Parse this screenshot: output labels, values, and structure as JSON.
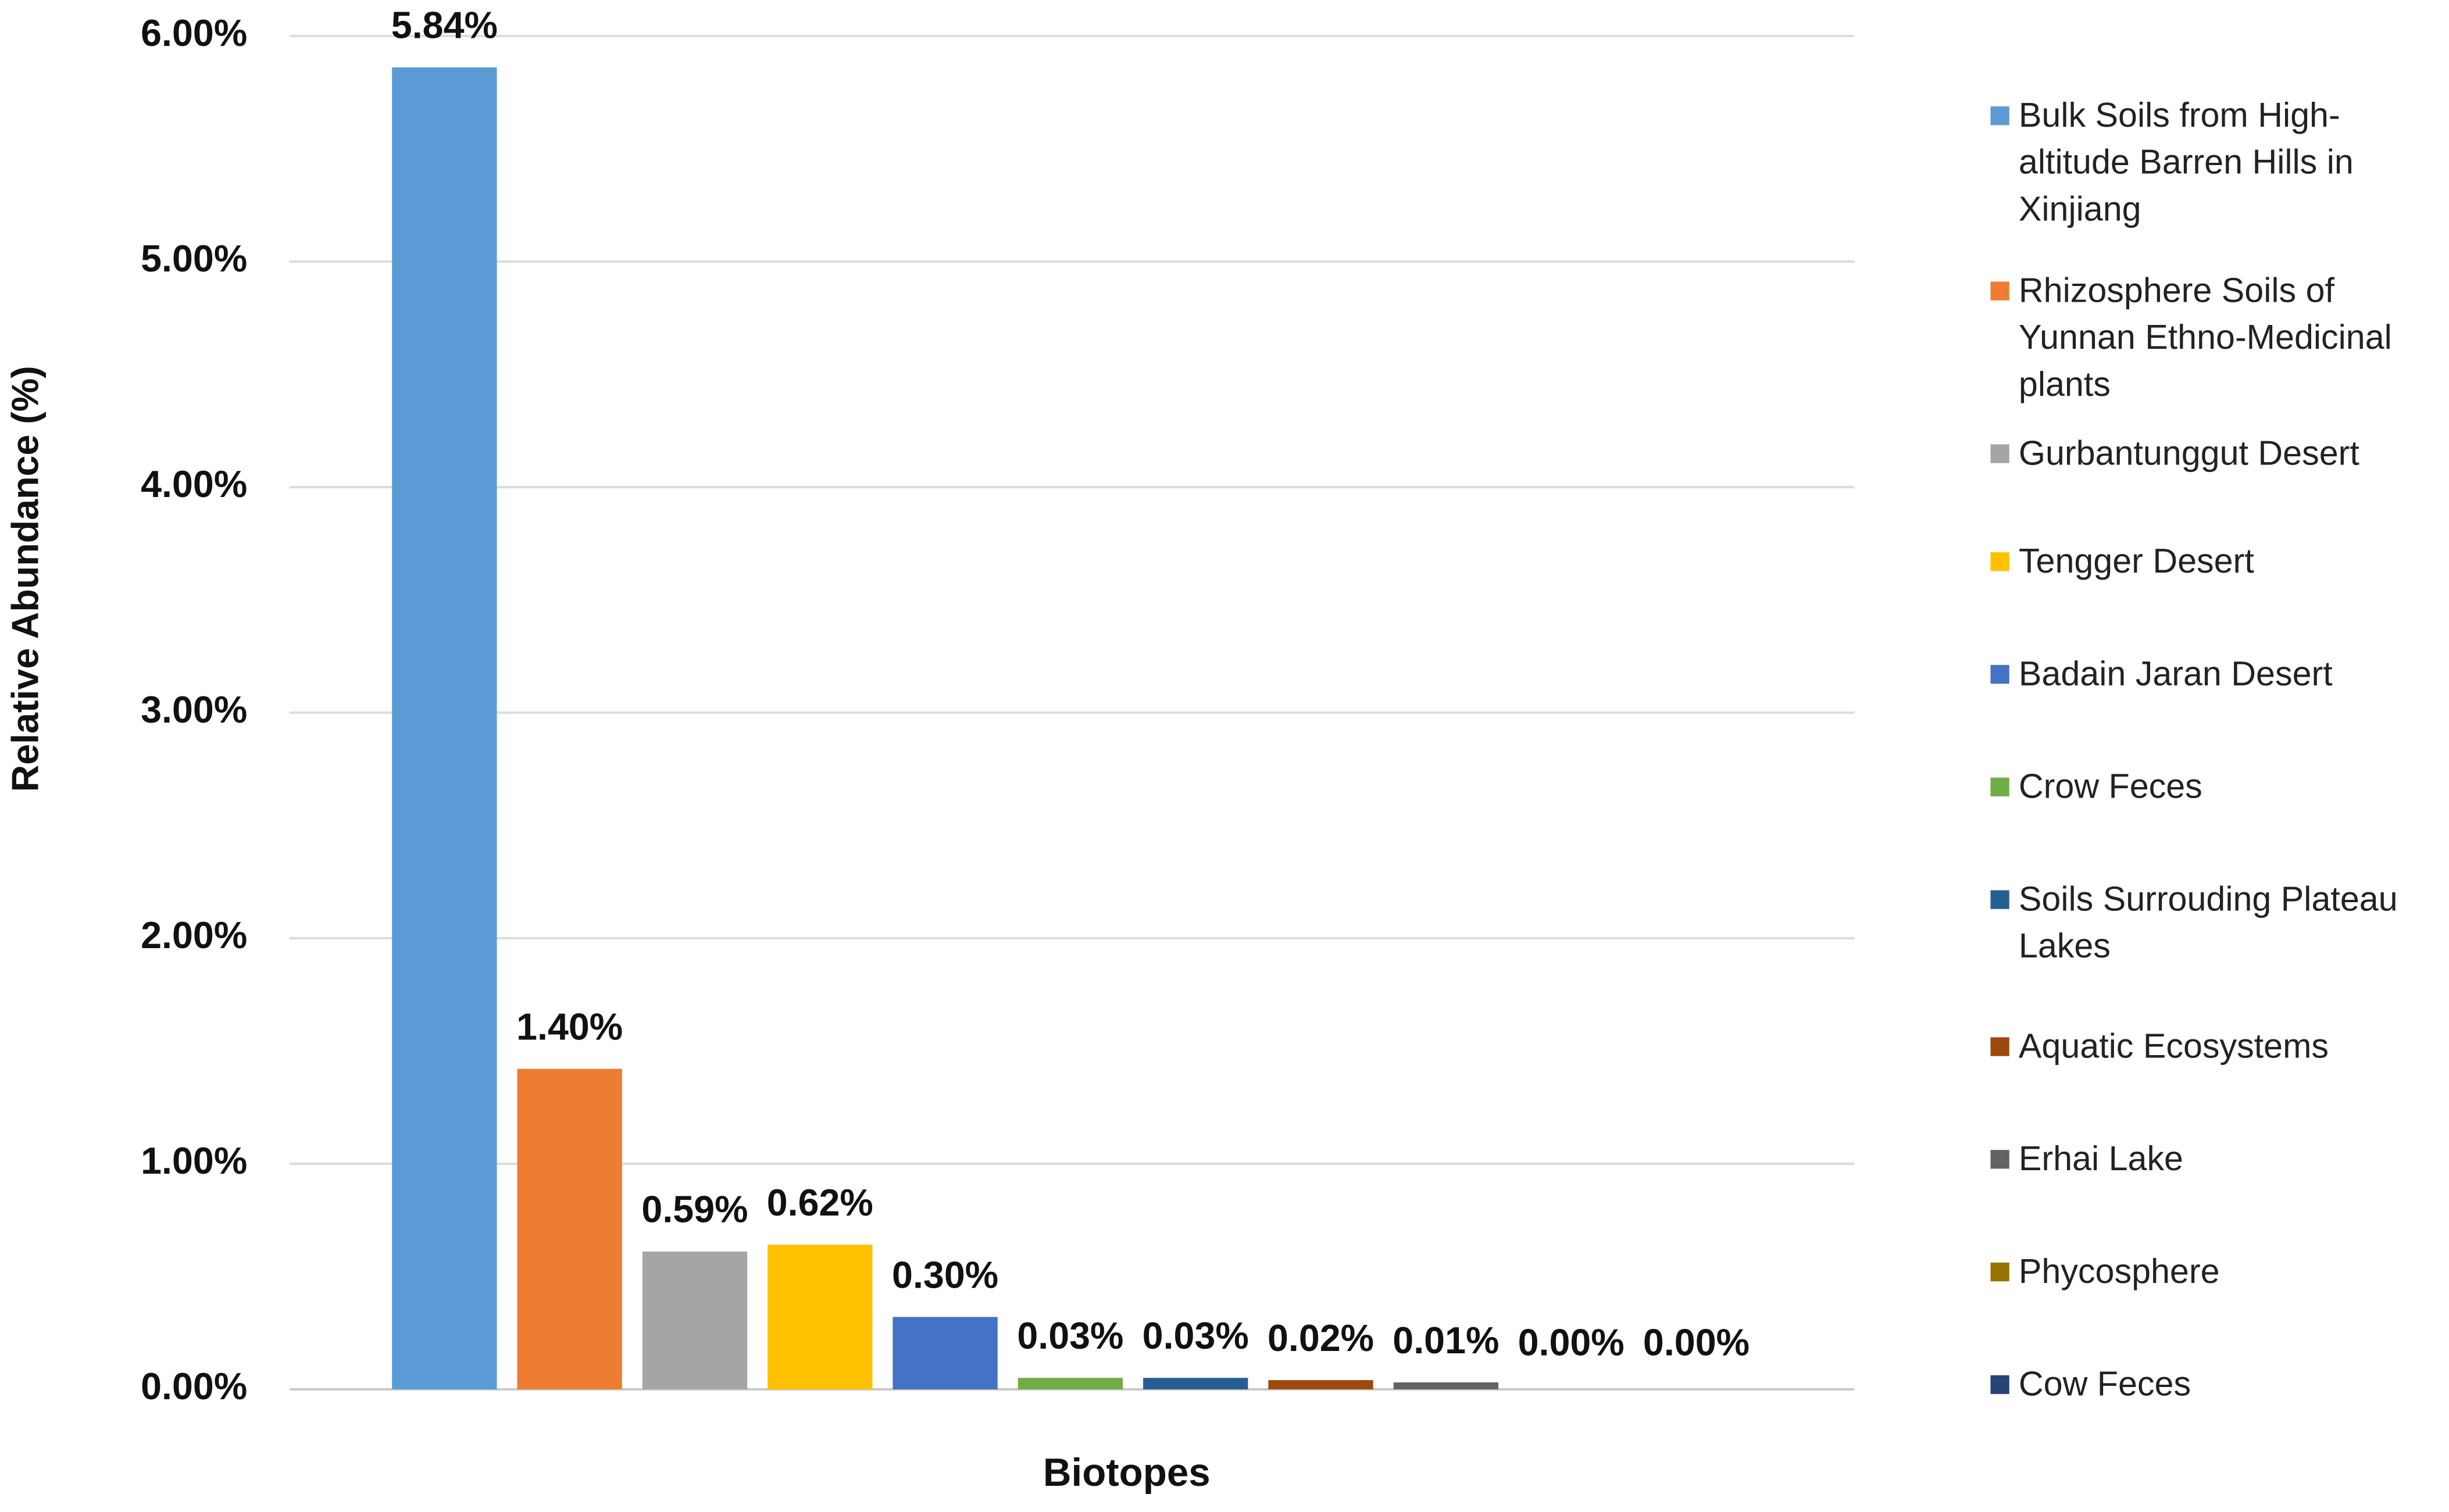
{
  "chart_data": {
    "type": "bar",
    "y_label": "Relative Abundance (%)",
    "x_label": "Biotopes",
    "categories": [
      "Bulk Soils from High-altitude Barren Hills in Xinjiang",
      "Rhizosphere Soils of Yunnan Ethno-Medicinal plants",
      "Gurbantunggut Desert",
      "Tengger Desert",
      "Badain Jaran Desert",
      "Crow Feces",
      "Soils Surrouding Plateau Lakes",
      "Aquatic Ecosystems",
      "Erhai Lake",
      "Phycosphere",
      "Cow Feces"
    ],
    "values": [
      5.84,
      1.4,
      0.59,
      0.62,
      0.3,
      0.03,
      0.03,
      0.02,
      0.01,
      0.0,
      0.0
    ],
    "value_labels": [
      "5.84%",
      "1.40%",
      "0.59%",
      "0.62%",
      "0.30%",
      "0.03%",
      "0.03%",
      "0.02%",
      "0.01%",
      "0.00%",
      "0.00%"
    ],
    "colors": [
      "#5b9bd5",
      "#ed7d31",
      "#a5a5a5",
      "#ffc000",
      "#4472c4",
      "#70ad47",
      "#255e91",
      "#9e480e",
      "#636363",
      "#997300",
      "#264478"
    ],
    "ylim": [
      0,
      6
    ],
    "yticks": [
      {
        "value": 0,
        "label": "0.00%"
      },
      {
        "value": 1,
        "label": "1.00%"
      },
      {
        "value": 2,
        "label": "2.00%"
      },
      {
        "value": 3,
        "label": "3.00%"
      },
      {
        "value": 4,
        "label": "4.00%"
      },
      {
        "value": 5,
        "label": "5.00%"
      },
      {
        "value": 6,
        "label": "6.00%"
      }
    ],
    "grid": true,
    "legend": "right"
  }
}
